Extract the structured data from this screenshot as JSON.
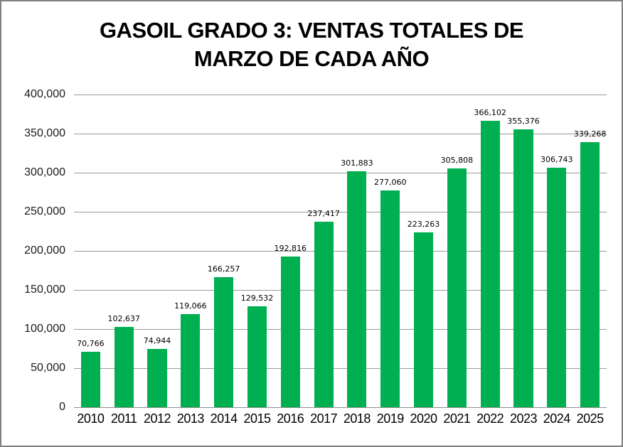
{
  "frame": {
    "border_color": "#808080",
    "background_color": "#ffffff"
  },
  "title": {
    "text": "GASOIL GRADO 3: VENTAS TOTALES DE MARZO DE CADA AÑO",
    "lines": [
      "GASOIL GRADO 3: VENTAS TOTALES DE",
      "MARZO DE CADA AÑO"
    ]
  },
  "chart_data": {
    "type": "bar",
    "title": "GASOIL GRADO 3: VENTAS TOTALES DE MARZO DE CADA AÑO",
    "categories": [
      "2010",
      "2011",
      "2012",
      "2013",
      "2014",
      "2015",
      "2016",
      "2017",
      "2018",
      "2019",
      "2020",
      "2021",
      "2022",
      "2023",
      "2024",
      "2025"
    ],
    "values": [
      70766,
      102637,
      74944,
      119066,
      166257,
      129532,
      192816,
      237417,
      301883,
      277060,
      223263,
      305808,
      366102,
      355376,
      306743,
      339268
    ],
    "value_labels": [
      "70,766",
      "102,637",
      "74,944",
      "119,066",
      "166,257",
      "129,532",
      "192,816",
      "237,417",
      "301,883",
      "277,060",
      "223,263",
      "305,808",
      "366,102",
      "355,376",
      "306,743",
      "339,268"
    ],
    "xlabel": "",
    "ylabel": "",
    "ylim": [
      0,
      400000
    ],
    "ytick_interval": 50000,
    "ytick_labels": [
      "0",
      "50,000",
      "100,000",
      "150,000",
      "200,000",
      "250,000",
      "300,000",
      "350,000",
      "400,000"
    ],
    "grid": true,
    "gridline_color": "#9a9a9a",
    "bar_color": "#00B050",
    "legend_position": "none"
  }
}
